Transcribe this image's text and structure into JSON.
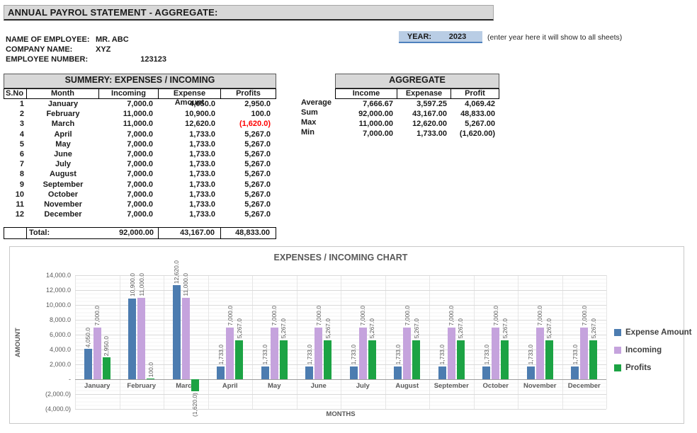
{
  "header": {
    "title": "ANNUAL PAYROL STATEMENT - AGGREGATE:"
  },
  "employee_info": {
    "rows": [
      {
        "label": "NAME OF EMPLOYEE:",
        "value": "MR. ABC"
      },
      {
        "label": "COMPANY NAME:",
        "value": "XYZ"
      },
      {
        "label": "EMPLOYEE NUMBER:",
        "value": "123123"
      }
    ]
  },
  "year_box": {
    "label": "YEAR:",
    "value": "2023",
    "note": "(enter year here it will show to all sheets)"
  },
  "summary_table": {
    "title": "SUMMERY: EXPENSES / INCOMING",
    "columns": [
      "S.No",
      "Month",
      "Incoming",
      "Expense Amount",
      "Profits"
    ],
    "rows": [
      {
        "sno": "1",
        "month": "January",
        "incoming": "7,000.0",
        "expense": "4,050.0",
        "profits": "2,950.0"
      },
      {
        "sno": "2",
        "month": "February",
        "incoming": "11,000.0",
        "expense": "10,900.0",
        "profits": "100.0"
      },
      {
        "sno": "3",
        "month": "March",
        "incoming": "11,000.0",
        "expense": "12,620.0",
        "profits": "(1,620.0)"
      },
      {
        "sno": "4",
        "month": "April",
        "incoming": "7,000.0",
        "expense": "1,733.0",
        "profits": "5,267.0"
      },
      {
        "sno": "5",
        "month": "May",
        "incoming": "7,000.0",
        "expense": "1,733.0",
        "profits": "5,267.0"
      },
      {
        "sno": "6",
        "month": "June",
        "incoming": "7,000.0",
        "expense": "1,733.0",
        "profits": "5,267.0"
      },
      {
        "sno": "7",
        "month": "July",
        "incoming": "7,000.0",
        "expense": "1,733.0",
        "profits": "5,267.0"
      },
      {
        "sno": "8",
        "month": "August",
        "incoming": "7,000.0",
        "expense": "1,733.0",
        "profits": "5,267.0"
      },
      {
        "sno": "9",
        "month": "September",
        "incoming": "7,000.0",
        "expense": "1,733.0",
        "profits": "5,267.0"
      },
      {
        "sno": "10",
        "month": "October",
        "incoming": "7,000.0",
        "expense": "1,733.0",
        "profits": "5,267.0"
      },
      {
        "sno": "11",
        "month": "November",
        "incoming": "7,000.0",
        "expense": "1,733.0",
        "profits": "5,267.0"
      },
      {
        "sno": "12",
        "month": "December",
        "incoming": "7,000.0",
        "expense": "1,733.0",
        "profits": "5,267.0"
      }
    ],
    "total": {
      "label": "Total:",
      "incoming": "92,000.00",
      "expense": "43,167.00",
      "profits": "48,833.00"
    }
  },
  "aggregate_table": {
    "title": "AGGREGATE",
    "columns": [
      "Income",
      "Expenase",
      "Profit"
    ],
    "rows": [
      {
        "label": "Average",
        "income": "7,666.67",
        "expense": "3,597.25",
        "profit": "4,069.42"
      },
      {
        "label": "Sum",
        "income": "92,000.00",
        "expense": "43,167.00",
        "profit": "48,833.00"
      },
      {
        "label": "Max",
        "income": "11,000.00",
        "expense": "12,620.00",
        "profit": "5,267.00"
      },
      {
        "label": "Min",
        "income": "7,000.00",
        "expense": "1,733.00",
        "profit": "(1,620.00)"
      }
    ]
  },
  "chart_data": {
    "type": "bar",
    "title": "EXPENSES / INCOMING CHART",
    "xlabel": "MONTHS",
    "ylabel": "AMOUNT",
    "ylim": [
      -4000,
      14000
    ],
    "gridlines": true,
    "legend_position": "right",
    "categories": [
      "January",
      "February",
      "March",
      "April",
      "May",
      "June",
      "July",
      "August",
      "September",
      "October",
      "November",
      "December"
    ],
    "series": [
      {
        "name": "Expense Amount",
        "color": "#4C7CB0",
        "values": [
          4050,
          10900,
          12620,
          1733,
          1733,
          1733,
          1733,
          1733,
          1733,
          1733,
          1733,
          1733
        ],
        "labels": [
          "4,050.0",
          "10,900.0",
          "12,620.0",
          "1,733.0",
          "1,733.0",
          "1,733.0",
          "1,733.0",
          "1,733.0",
          "1,733.0",
          "1,733.0",
          "1,733.0",
          "1,733.0"
        ]
      },
      {
        "name": "Incoming",
        "color": "#C5A3DD",
        "values": [
          7000,
          11000,
          11000,
          7000,
          7000,
          7000,
          7000,
          7000,
          7000,
          7000,
          7000,
          7000
        ],
        "labels": [
          "7,000.0",
          "11,000.0",
          "11,000.0",
          "7,000.0",
          "7,000.0",
          "7,000.0",
          "7,000.0",
          "7,000.0",
          "7,000.0",
          "7,000.0",
          "7,000.0",
          "7,000.0"
        ]
      },
      {
        "name": "Profits",
        "color": "#1CA344",
        "values": [
          2950,
          100,
          -1620,
          5267,
          5267,
          5267,
          5267,
          5267,
          5267,
          5267,
          5267,
          5267
        ],
        "labels": [
          "2,950.0",
          "100.0",
          "(1,620.0)",
          "5,267.0",
          "5,267.0",
          "5,267.0",
          "5,267.0",
          "5,267.0",
          "5,267.0",
          "5,267.0",
          "5,267.0",
          "5,267.0"
        ]
      }
    ],
    "y_ticks": [
      {
        "value": 14000,
        "label": "14,000.0"
      },
      {
        "value": 12000,
        "label": "12,000.0"
      },
      {
        "value": 10000,
        "label": "10,000.0"
      },
      {
        "value": 8000,
        "label": "8,000.0"
      },
      {
        "value": 6000,
        "label": "6,000.0"
      },
      {
        "value": 4000,
        "label": "4,000.0"
      },
      {
        "value": 2000,
        "label": "2,000.0"
      },
      {
        "value": 0,
        "label": "-"
      },
      {
        "value": -2000,
        "label": "(2,000.0)"
      },
      {
        "value": -4000,
        "label": "(4,000.0)"
      }
    ]
  },
  "colors": {
    "section_header_bg": "#D8D8D8",
    "year_cell_bg": "#B9CDE5",
    "year_cell_border": "#4F81BD",
    "negative_text": "#FF0000",
    "chart_text": "#595959"
  }
}
